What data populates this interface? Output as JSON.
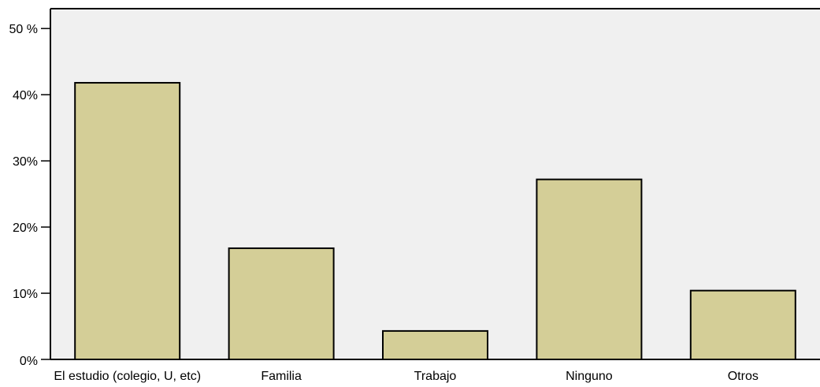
{
  "chart_data": {
    "type": "bar",
    "categories": [
      "El estudio (colegio, U, etc)",
      "Familia",
      "Trabajo",
      "Ninguno",
      "Otros"
    ],
    "values": [
      41.8,
      16.8,
      4.3,
      27.2,
      10.4
    ],
    "ylim": [
      0,
      53
    ],
    "yticks": [
      {
        "value": 0,
        "label": "0%"
      },
      {
        "value": 10,
        "label": "10%"
      },
      {
        "value": 20,
        "label": "20%"
      },
      {
        "value": 30,
        "label": "30%"
      },
      {
        "value": 40,
        "label": "40%"
      },
      {
        "value": 50,
        "label": "50 %"
      }
    ],
    "title": "",
    "xlabel": "",
    "ylabel": "",
    "grid": false,
    "colors": {
      "bar_fill": "#d4ce97",
      "plot_background": "#f0f0f0",
      "axis": "#000000"
    }
  }
}
